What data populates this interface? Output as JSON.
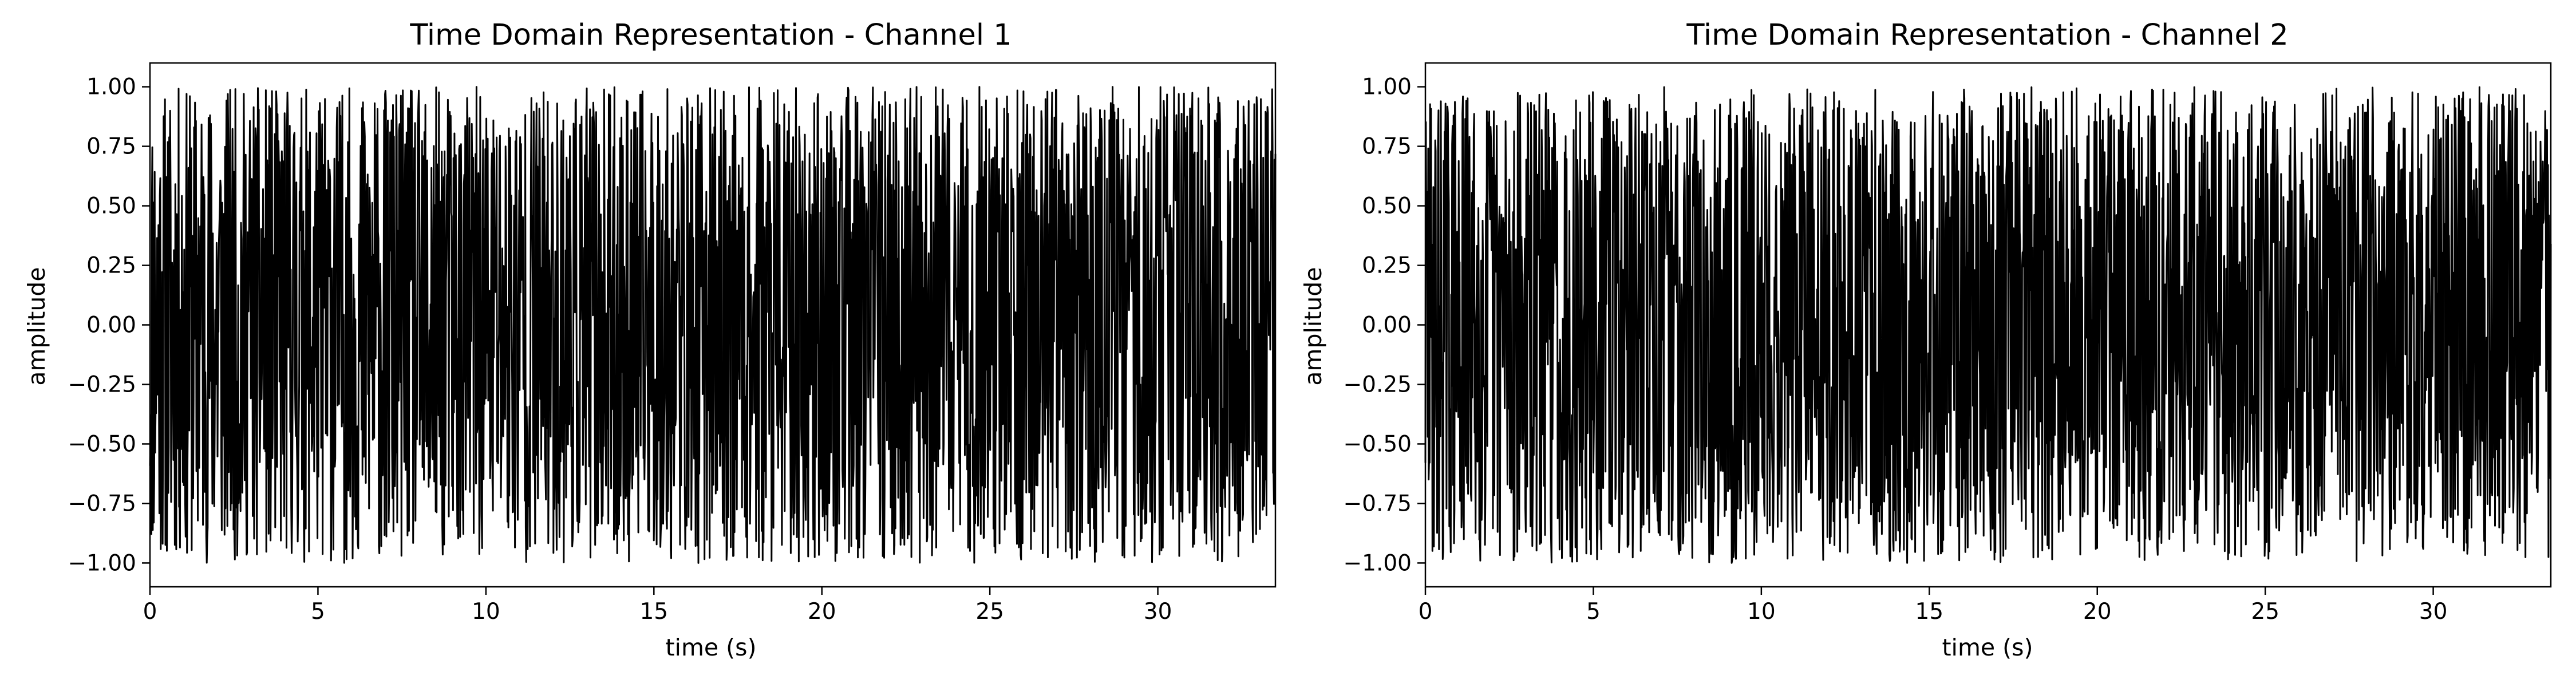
{
  "chart_data": [
    {
      "type": "line",
      "title": "Time Domain Representation - Channel 1",
      "xlabel": "time (s)",
      "ylabel": "amplitude",
      "xlim": [
        0,
        33.5
      ],
      "ylim": [
        -1.1,
        1.1
      ],
      "xticks": [
        0,
        5,
        10,
        15,
        20,
        25,
        30
      ],
      "xtick_labels": [
        "0",
        "5",
        "10",
        "15",
        "20",
        "25",
        "30"
      ],
      "yticks": [
        1.0,
        0.75,
        0.5,
        0.25,
        0.0,
        -0.25,
        -0.5,
        -0.75,
        -1.0
      ],
      "ytick_labels": [
        "1.00",
        "0.75",
        "0.50",
        "0.25",
        "0.00",
        "−0.25",
        "−0.50",
        "−0.75",
        "−1.00"
      ],
      "grid": false,
      "series": [
        {
          "color": "#000000",
          "x_range": [
            0,
            33.5
          ],
          "sample_count": 2400,
          "amplitude_range": [
            -1.0,
            1.0
          ],
          "generator_seed": 11
        }
      ]
    },
    {
      "type": "line",
      "title": "Time Domain Representation - Channel 2",
      "xlabel": "time (s)",
      "ylabel": "amplitude",
      "xlim": [
        0,
        33.5
      ],
      "ylim": [
        -1.1,
        1.1
      ],
      "xticks": [
        0,
        5,
        10,
        15,
        20,
        25,
        30
      ],
      "xtick_labels": [
        "0",
        "5",
        "10",
        "15",
        "20",
        "25",
        "30"
      ],
      "yticks": [
        1.0,
        0.75,
        0.5,
        0.25,
        0.0,
        -0.25,
        -0.5,
        -0.75,
        -1.0
      ],
      "ytick_labels": [
        "1.00",
        "0.75",
        "0.50",
        "0.25",
        "0.00",
        "−0.25",
        "−0.50",
        "−0.75",
        "−1.00"
      ],
      "grid": false,
      "series": [
        {
          "color": "#000000",
          "x_range": [
            0,
            33.5
          ],
          "sample_count": 2400,
          "amplitude_range": [
            -1.0,
            1.0
          ],
          "generator_seed": 29
        }
      ]
    }
  ]
}
